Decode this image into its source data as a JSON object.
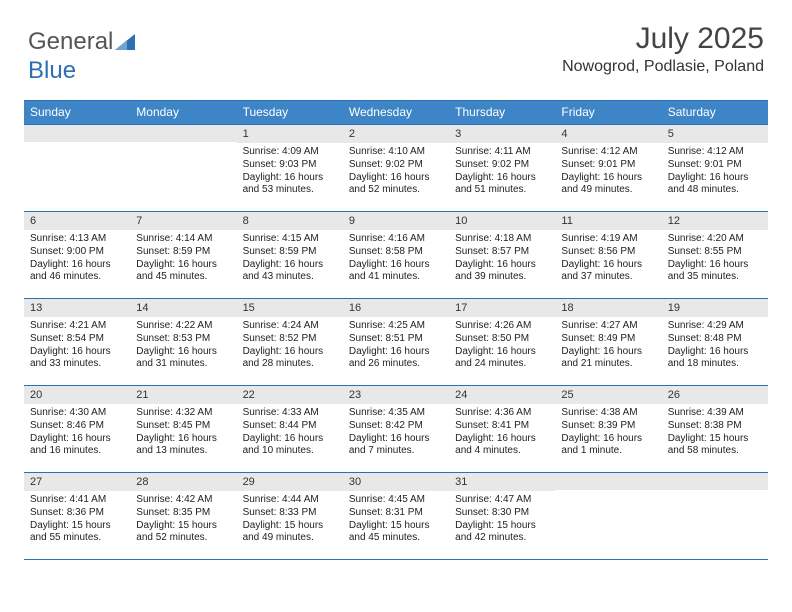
{
  "logo": {
    "part1": "General",
    "part2": "Blue"
  },
  "header": {
    "month_year": "July 2025",
    "location": "Nowogrod, Podlasie, Poland"
  },
  "colors": {
    "header_bg": "#3d85c6",
    "header_border": "#2d6fb5",
    "daynum_bg": "#e8e8e8",
    "text": "#222222",
    "logo_gray": "#555555",
    "logo_blue": "#2d6fb5"
  },
  "weekdays": [
    "Sunday",
    "Monday",
    "Tuesday",
    "Wednesday",
    "Thursday",
    "Friday",
    "Saturday"
  ],
  "weeks": [
    [
      null,
      null,
      {
        "n": "1",
        "sunrise": "4:09 AM",
        "sunset": "9:03 PM",
        "daylight": "16 hours and 53 minutes."
      },
      {
        "n": "2",
        "sunrise": "4:10 AM",
        "sunset": "9:02 PM",
        "daylight": "16 hours and 52 minutes."
      },
      {
        "n": "3",
        "sunrise": "4:11 AM",
        "sunset": "9:02 PM",
        "daylight": "16 hours and 51 minutes."
      },
      {
        "n": "4",
        "sunrise": "4:12 AM",
        "sunset": "9:01 PM",
        "daylight": "16 hours and 49 minutes."
      },
      {
        "n": "5",
        "sunrise": "4:12 AM",
        "sunset": "9:01 PM",
        "daylight": "16 hours and 48 minutes."
      }
    ],
    [
      {
        "n": "6",
        "sunrise": "4:13 AM",
        "sunset": "9:00 PM",
        "daylight": "16 hours and 46 minutes."
      },
      {
        "n": "7",
        "sunrise": "4:14 AM",
        "sunset": "8:59 PM",
        "daylight": "16 hours and 45 minutes."
      },
      {
        "n": "8",
        "sunrise": "4:15 AM",
        "sunset": "8:59 PM",
        "daylight": "16 hours and 43 minutes."
      },
      {
        "n": "9",
        "sunrise": "4:16 AM",
        "sunset": "8:58 PM",
        "daylight": "16 hours and 41 minutes."
      },
      {
        "n": "10",
        "sunrise": "4:18 AM",
        "sunset": "8:57 PM",
        "daylight": "16 hours and 39 minutes."
      },
      {
        "n": "11",
        "sunrise": "4:19 AM",
        "sunset": "8:56 PM",
        "daylight": "16 hours and 37 minutes."
      },
      {
        "n": "12",
        "sunrise": "4:20 AM",
        "sunset": "8:55 PM",
        "daylight": "16 hours and 35 minutes."
      }
    ],
    [
      {
        "n": "13",
        "sunrise": "4:21 AM",
        "sunset": "8:54 PM",
        "daylight": "16 hours and 33 minutes."
      },
      {
        "n": "14",
        "sunrise": "4:22 AM",
        "sunset": "8:53 PM",
        "daylight": "16 hours and 31 minutes."
      },
      {
        "n": "15",
        "sunrise": "4:24 AM",
        "sunset": "8:52 PM",
        "daylight": "16 hours and 28 minutes."
      },
      {
        "n": "16",
        "sunrise": "4:25 AM",
        "sunset": "8:51 PM",
        "daylight": "16 hours and 26 minutes."
      },
      {
        "n": "17",
        "sunrise": "4:26 AM",
        "sunset": "8:50 PM",
        "daylight": "16 hours and 24 minutes."
      },
      {
        "n": "18",
        "sunrise": "4:27 AM",
        "sunset": "8:49 PM",
        "daylight": "16 hours and 21 minutes."
      },
      {
        "n": "19",
        "sunrise": "4:29 AM",
        "sunset": "8:48 PM",
        "daylight": "16 hours and 18 minutes."
      }
    ],
    [
      {
        "n": "20",
        "sunrise": "4:30 AM",
        "sunset": "8:46 PM",
        "daylight": "16 hours and 16 minutes."
      },
      {
        "n": "21",
        "sunrise": "4:32 AM",
        "sunset": "8:45 PM",
        "daylight": "16 hours and 13 minutes."
      },
      {
        "n": "22",
        "sunrise": "4:33 AM",
        "sunset": "8:44 PM",
        "daylight": "16 hours and 10 minutes."
      },
      {
        "n": "23",
        "sunrise": "4:35 AM",
        "sunset": "8:42 PM",
        "daylight": "16 hours and 7 minutes."
      },
      {
        "n": "24",
        "sunrise": "4:36 AM",
        "sunset": "8:41 PM",
        "daylight": "16 hours and 4 minutes."
      },
      {
        "n": "25",
        "sunrise": "4:38 AM",
        "sunset": "8:39 PM",
        "daylight": "16 hours and 1 minute."
      },
      {
        "n": "26",
        "sunrise": "4:39 AM",
        "sunset": "8:38 PM",
        "daylight": "15 hours and 58 minutes."
      }
    ],
    [
      {
        "n": "27",
        "sunrise": "4:41 AM",
        "sunset": "8:36 PM",
        "daylight": "15 hours and 55 minutes."
      },
      {
        "n": "28",
        "sunrise": "4:42 AM",
        "sunset": "8:35 PM",
        "daylight": "15 hours and 52 minutes."
      },
      {
        "n": "29",
        "sunrise": "4:44 AM",
        "sunset": "8:33 PM",
        "daylight": "15 hours and 49 minutes."
      },
      {
        "n": "30",
        "sunrise": "4:45 AM",
        "sunset": "8:31 PM",
        "daylight": "15 hours and 45 minutes."
      },
      {
        "n": "31",
        "sunrise": "4:47 AM",
        "sunset": "8:30 PM",
        "daylight": "15 hours and 42 minutes."
      },
      null,
      null
    ]
  ],
  "labels": {
    "sunrise": "Sunrise: ",
    "sunset": "Sunset: ",
    "daylight": "Daylight: "
  }
}
